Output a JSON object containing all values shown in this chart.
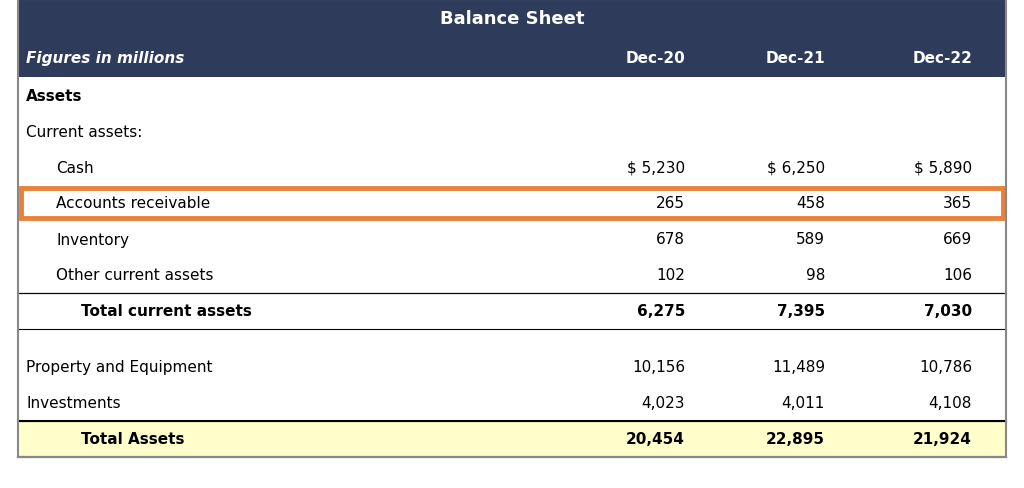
{
  "title": "Balance Sheet",
  "header_bg": "#2E3B5B",
  "header_text_color": "#FFFFFF",
  "subheader_text_color": "#FFFFFF",
  "total_assets_bg": "#FFFFCC",
  "highlight_row_color": "#E8823A",
  "col_headers": [
    "Figures in millions",
    "Dec-20",
    "Dec-21",
    "Dec-22"
  ],
  "rows": [
    {
      "label": "Assets",
      "values": [
        "",
        "",
        ""
      ],
      "style": "section_bold",
      "indent": 0
    },
    {
      "label": "Current assets:",
      "values": [
        "",
        "",
        ""
      ],
      "style": "normal",
      "indent": 0
    },
    {
      "label": "Cash",
      "values": [
        "$ 5,230",
        "$ 6,250",
        "$ 5,890"
      ],
      "style": "cash",
      "indent": 1
    },
    {
      "label": "Accounts receivable",
      "values": [
        "265",
        "458",
        "365"
      ],
      "style": "highlighted",
      "indent": 1
    },
    {
      "label": "Inventory",
      "values": [
        "678",
        "589",
        "669"
      ],
      "style": "normal",
      "indent": 1
    },
    {
      "label": "Other current assets",
      "values": [
        "102",
        "98",
        "106"
      ],
      "style": "normal",
      "indent": 1
    },
    {
      "label": "Total current assets",
      "values": [
        "6,275",
        "7,395",
        "7,030"
      ],
      "style": "subtotal_bold",
      "indent": 2
    },
    {
      "label": "",
      "values": [
        "",
        "",
        ""
      ],
      "style": "spacer",
      "indent": 0
    },
    {
      "label": "Property and Equipment",
      "values": [
        "10,156",
        "11,489",
        "10,786"
      ],
      "style": "normal",
      "indent": 0
    },
    {
      "label": "Investments",
      "values": [
        "4,023",
        "4,011",
        "4,108"
      ],
      "style": "normal",
      "indent": 0
    },
    {
      "label": "Total Assets",
      "values": [
        "20,454",
        "22,895",
        "21,924"
      ],
      "style": "total_bold",
      "indent": 2
    }
  ],
  "fig_width": 10.24,
  "fig_height": 4.89
}
